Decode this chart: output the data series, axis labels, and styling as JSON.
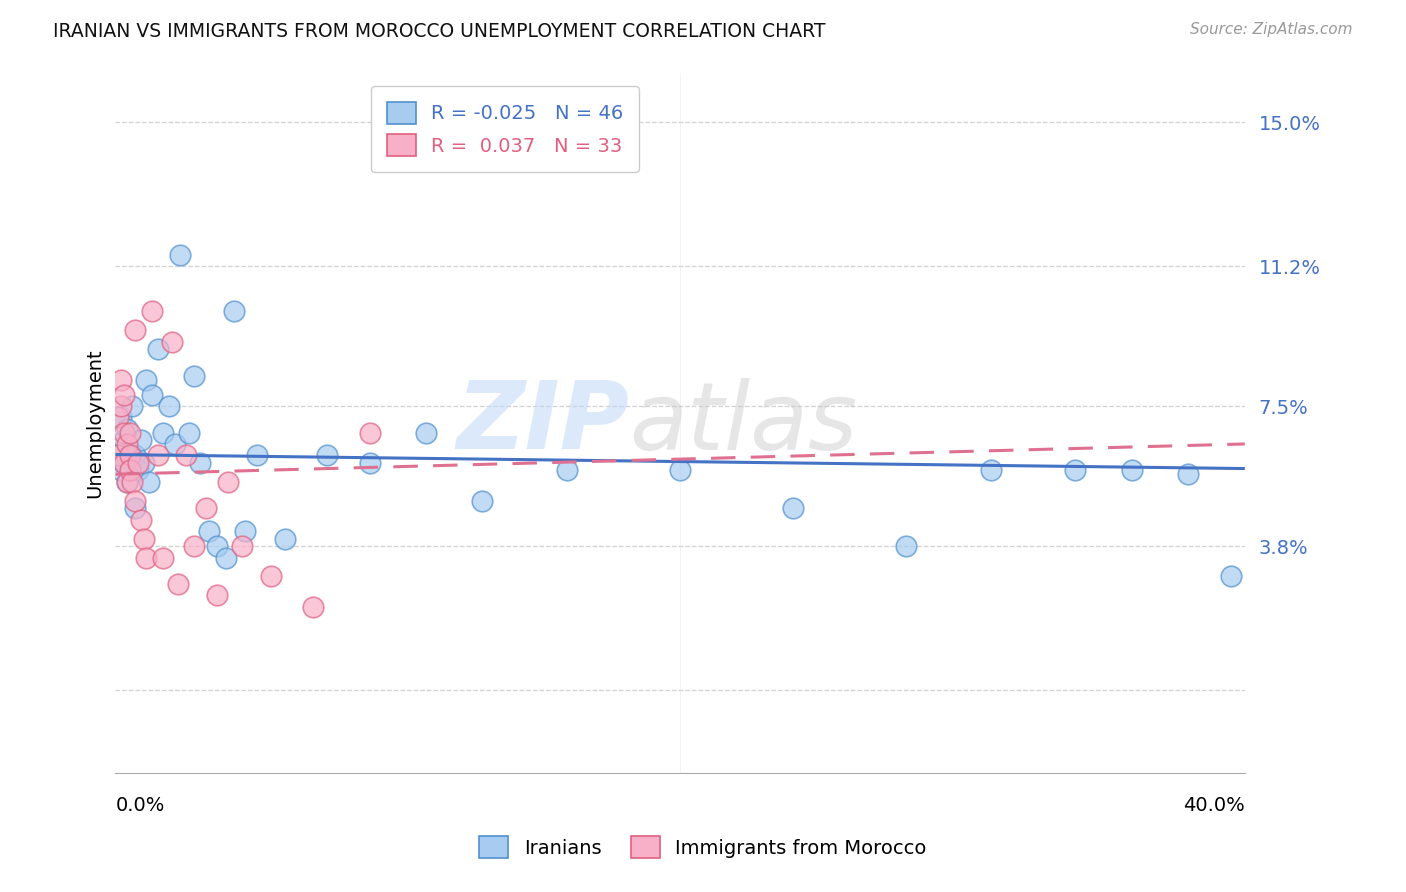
{
  "title": "IRANIAN VS IMMIGRANTS FROM MOROCCO UNEMPLOYMENT CORRELATION CHART",
  "source": "Source: ZipAtlas.com",
  "ylabel": "Unemployment",
  "ytick_vals": [
    0.0,
    0.038,
    0.075,
    0.112,
    0.15
  ],
  "ytick_labels": [
    "",
    "3.8%",
    "7.5%",
    "11.2%",
    "15.0%"
  ],
  "xmin": 0.0,
  "xmax": 0.4,
  "ymin": -0.022,
  "ymax": 0.163,
  "R_iranian": -0.025,
  "N_iranian": 46,
  "R_morocco": 0.037,
  "N_morocco": 33,
  "legend_iranians": "Iranians",
  "legend_morocco": "Immigrants from Morocco",
  "color_blue_fill": "#A8CCF0",
  "color_blue_edge": "#5090D0",
  "color_pink_fill": "#F8B0C8",
  "color_pink_edge": "#E06080",
  "color_blue_line": "#4472C4",
  "color_pink_line": "#E07090",
  "color_grid": "#CCCCCC",
  "color_ytick": "#4472C4",
  "watermark_zip": "ZIP",
  "watermark_atlas": "atlas",
  "blue_line_y0": 0.0622,
  "blue_line_y1": 0.0585,
  "pink_line_y0": 0.057,
  "pink_line_y1": 0.065,
  "iranians_x": [
    0.001,
    0.002,
    0.002,
    0.003,
    0.003,
    0.004,
    0.004,
    0.005,
    0.005,
    0.006,
    0.007,
    0.007,
    0.008,
    0.009,
    0.01,
    0.011,
    0.012,
    0.013,
    0.015,
    0.017,
    0.019,
    0.021,
    0.023,
    0.026,
    0.028,
    0.03,
    0.033,
    0.036,
    0.039,
    0.042,
    0.046,
    0.05,
    0.06,
    0.075,
    0.09,
    0.11,
    0.13,
    0.16,
    0.2,
    0.24,
    0.28,
    0.31,
    0.34,
    0.36,
    0.38,
    0.395
  ],
  "iranians_y": [
    0.062,
    0.058,
    0.072,
    0.06,
    0.066,
    0.055,
    0.069,
    0.063,
    0.058,
    0.075,
    0.062,
    0.048,
    0.058,
    0.066,
    0.06,
    0.082,
    0.055,
    0.078,
    0.09,
    0.068,
    0.075,
    0.065,
    0.115,
    0.068,
    0.083,
    0.06,
    0.042,
    0.038,
    0.035,
    0.1,
    0.042,
    0.062,
    0.04,
    0.062,
    0.06,
    0.068,
    0.05,
    0.058,
    0.058,
    0.048,
    0.038,
    0.058,
    0.058,
    0.058,
    0.057,
    0.03
  ],
  "morocco_x": [
    0.001,
    0.001,
    0.002,
    0.002,
    0.003,
    0.003,
    0.003,
    0.004,
    0.004,
    0.005,
    0.005,
    0.005,
    0.006,
    0.007,
    0.007,
    0.008,
    0.009,
    0.01,
    0.011,
    0.013,
    0.015,
    0.017,
    0.02,
    0.022,
    0.025,
    0.028,
    0.032,
    0.036,
    0.04,
    0.045,
    0.055,
    0.07,
    0.09
  ],
  "morocco_y": [
    0.062,
    0.072,
    0.075,
    0.082,
    0.078,
    0.068,
    0.06,
    0.065,
    0.055,
    0.062,
    0.058,
    0.068,
    0.055,
    0.095,
    0.05,
    0.06,
    0.045,
    0.04,
    0.035,
    0.1,
    0.062,
    0.035,
    0.092,
    0.028,
    0.062,
    0.038,
    0.048,
    0.025,
    0.055,
    0.038,
    0.03,
    0.022,
    0.068
  ]
}
